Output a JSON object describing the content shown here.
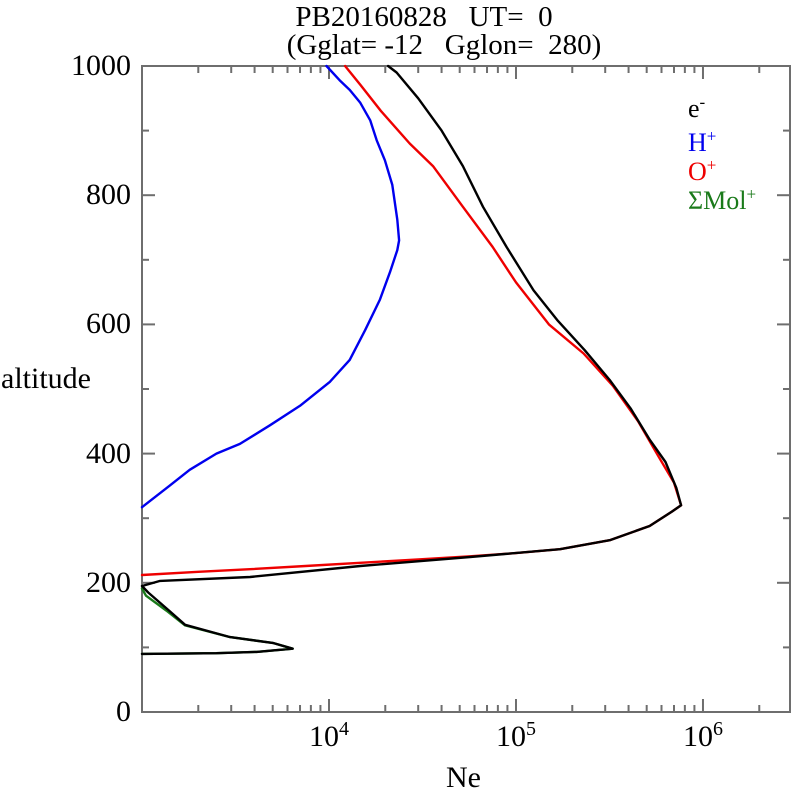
{
  "chart_data": {
    "type": "line",
    "title": "PB20160828   UT=  0",
    "subtitle": "(Gglat= -12   Gglon=  280)",
    "xlabel": "Ne",
    "ylabel": "altitude",
    "x_scale": "log",
    "xlim": [
      1000,
      2920000
    ],
    "ylim": [
      0,
      1000
    ],
    "x_tick_base": "10",
    "x_major_tick_exponents": [
      "4",
      "5",
      "6"
    ],
    "y_tick_values": [
      1000,
      800,
      600,
      400,
      200,
      0
    ],
    "y_minor_step": 100,
    "y_major_step": 200,
    "grid": false,
    "legend_position": "top-right-inside",
    "frame_color": "#6e6e6e",
    "series": [
      {
        "name": "electron-density",
        "label_base": "e",
        "label_sup": "-",
        "color": "#000000",
        "points": [
          [
            1000,
            90
          ],
          [
            2500,
            91
          ],
          [
            4100,
            93
          ],
          [
            6400,
            98
          ],
          [
            5000,
            107
          ],
          [
            2960,
            116
          ],
          [
            1700,
            135
          ],
          [
            1380,
            158
          ],
          [
            1080,
            185
          ],
          [
            1000,
            195
          ],
          [
            1250,
            203
          ],
          [
            3780,
            209
          ],
          [
            14700,
            226
          ],
          [
            56800,
            240
          ],
          [
            172000,
            252
          ],
          [
            317000,
            266
          ],
          [
            518000,
            288
          ],
          [
            680000,
            310
          ],
          [
            764000,
            320
          ],
          [
            720000,
            347
          ],
          [
            630000,
            387
          ],
          [
            520000,
            421
          ],
          [
            410000,
            470
          ],
          [
            317000,
            514
          ],
          [
            233000,
            560
          ],
          [
            166000,
            607
          ],
          [
            124000,
            653
          ],
          [
            89000,
            720
          ],
          [
            66600,
            782
          ],
          [
            52000,
            845
          ],
          [
            40000,
            900
          ],
          [
            30000,
            950
          ],
          [
            23000,
            990
          ],
          [
            20700,
            1000
          ]
        ]
      },
      {
        "name": "hydrogen-ion",
        "label_base": "H",
        "label_sup": "+",
        "color": "#0000ee",
        "points": [
          [
            1000,
            317
          ],
          [
            1400,
            350
          ],
          [
            1800,
            375
          ],
          [
            2500,
            400
          ],
          [
            3340,
            415
          ],
          [
            4840,
            444
          ],
          [
            7000,
            474
          ],
          [
            10100,
            511
          ],
          [
            12900,
            545
          ],
          [
            15600,
            591
          ],
          [
            18700,
            638
          ],
          [
            21200,
            681
          ],
          [
            23200,
            715
          ],
          [
            23700,
            730
          ],
          [
            23200,
            762
          ],
          [
            21800,
            816
          ],
          [
            19900,
            854
          ],
          [
            18000,
            885
          ],
          [
            16600,
            916
          ],
          [
            14700,
            943
          ],
          [
            12900,
            963
          ],
          [
            11400,
            978
          ],
          [
            9700,
            1000
          ]
        ]
      },
      {
        "name": "oxygen-ion",
        "label_base": "O",
        "label_sup": "+",
        "color": "#ee0000",
        "points": [
          [
            1000,
            212
          ],
          [
            2000,
            217
          ],
          [
            3780,
            221
          ],
          [
            7500,
            226
          ],
          [
            14700,
            231
          ],
          [
            30000,
            236
          ],
          [
            56800,
            241
          ],
          [
            100000,
            246
          ],
          [
            172000,
            252
          ],
          [
            317000,
            266
          ],
          [
            518000,
            288
          ],
          [
            680000,
            310
          ],
          [
            764000,
            320
          ],
          [
            700000,
            355
          ],
          [
            580000,
            395
          ],
          [
            450000,
            450
          ],
          [
            330000,
            505
          ],
          [
            230000,
            555
          ],
          [
            150000,
            600
          ],
          [
            100000,
            665
          ],
          [
            75000,
            720
          ],
          [
            52000,
            782
          ],
          [
            36000,
            845
          ],
          [
            27000,
            880
          ],
          [
            19000,
            930
          ],
          [
            14800,
            970
          ],
          [
            12200,
            1000
          ]
        ]
      },
      {
        "name": "molecular-ions",
        "label_base": "ΣMol",
        "label_sup": "+",
        "color": "#1a7a1a",
        "points": [
          [
            1000,
            90
          ],
          [
            2500,
            91
          ],
          [
            4100,
            93
          ],
          [
            6400,
            98
          ],
          [
            5000,
            107
          ],
          [
            2960,
            116
          ],
          [
            1700,
            134
          ],
          [
            1350,
            157
          ],
          [
            1050,
            180
          ],
          [
            1000,
            191
          ]
        ]
      }
    ]
  }
}
